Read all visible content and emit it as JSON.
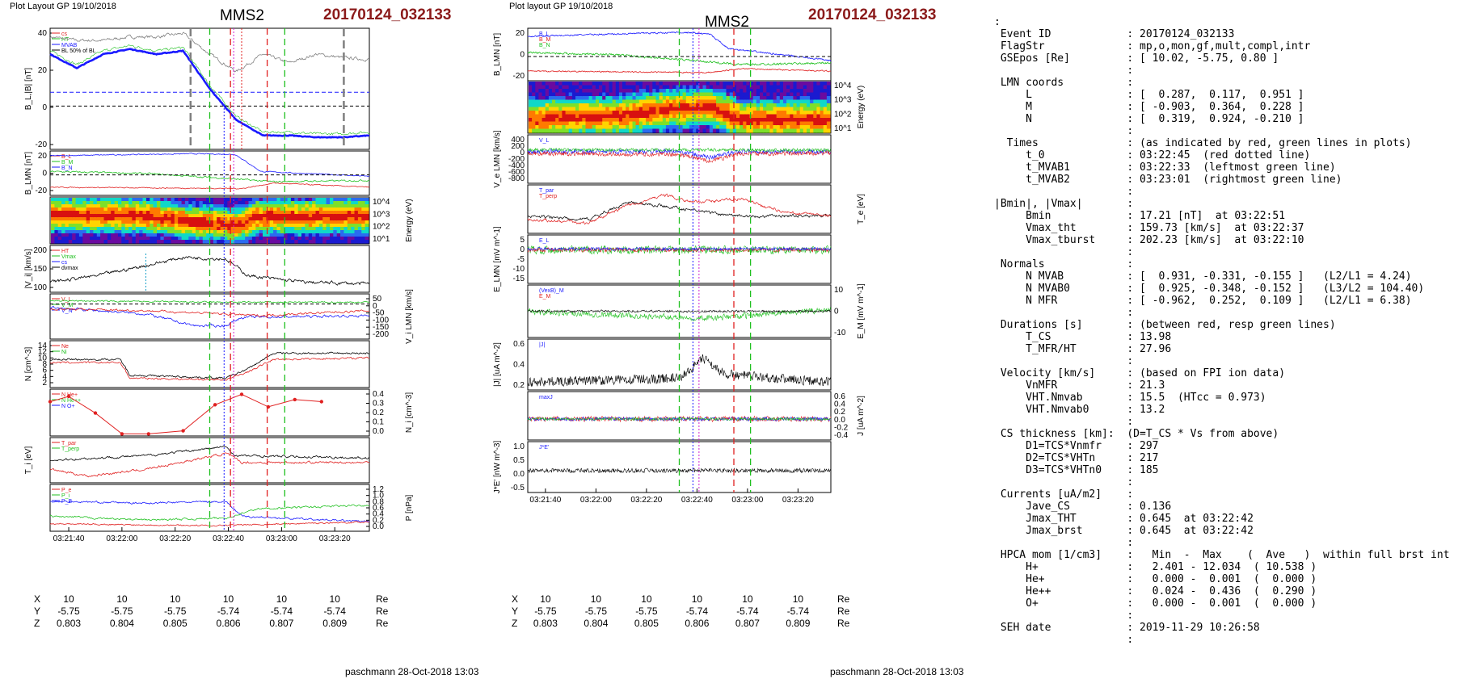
{
  "left": {
    "layout_label": "Plot Layout GP 19/10/2018",
    "spacecraft": "MMS2",
    "event": "20170124_032133",
    "footer": "paschmann 28-Oct-2018 13:03",
    "time_ticks": [
      "03:21:40",
      "03:22:00",
      "03:22:20",
      "03:22:40",
      "03:23:00",
      "03:23:20"
    ],
    "position": {
      "rows": [
        {
          "label": "X",
          "values": [
            "10",
            "10",
            "10",
            "10",
            "10",
            "10"
          ],
          "unit": "Re"
        },
        {
          "label": "Y",
          "values": [
            "-5.75",
            "-5.75",
            "-5.75",
            "-5.74",
            "-5.74",
            "-5.74"
          ],
          "unit": "Re"
        },
        {
          "label": "Z",
          "values": [
            "0.803",
            "0.804",
            "0.805",
            "0.806",
            "0.807",
            "0.809"
          ],
          "unit": "Re"
        }
      ]
    },
    "panels": [
      {
        "ylabel": "B_L,|B| [nT]",
        "ticks": [
          "40",
          "20",
          "0",
          "-20"
        ],
        "legend": [
          "cs",
          "HT",
          "MVAB",
          "BL 50% of BL"
        ]
      },
      {
        "ylabel": "B_LMN [nT]",
        "ticks": [
          "20",
          "0",
          "-20"
        ],
        "legend": [
          "B_L",
          "B_M",
          "B_N"
        ]
      },
      {
        "ylabel": "Energy (eV)",
        "ticks": [
          "10^4",
          "10^3",
          "10^2",
          "10^1"
        ],
        "legend": []
      },
      {
        "ylabel": "|V_i| [km/s]",
        "ticks": [
          "200",
          "150",
          "100"
        ],
        "legend": [
          "HT",
          "Vmax",
          "cs",
          "dvmax"
        ]
      },
      {
        "ylabel": "V_i LMN [km/s]",
        "ticks": [
          "50",
          "0",
          "-50",
          "-100",
          "-150",
          "-200"
        ],
        "legend": [
          "V_L",
          "V_M",
          "V_N"
        ]
      },
      {
        "ylabel": "N [cm^-3]",
        "ticks": [
          "14",
          "12",
          "10",
          "8",
          "6",
          "4",
          "2"
        ],
        "legend": [
          "Ne",
          "Ni"
        ]
      },
      {
        "ylabel": "N_i [cm^-3]",
        "ticks": [
          "0.4",
          "0.3",
          "0.2",
          "0.1",
          "0.0"
        ],
        "legend": [
          "N He+",
          "N He++",
          "N O+"
        ]
      },
      {
        "ylabel": "T_i [eV]",
        "ticks": [],
        "legend": [
          "T_par",
          "T_perp"
        ]
      },
      {
        "ylabel": "P [nPa]",
        "ticks": [
          "1.2",
          "1.0",
          "0.8",
          "0.6",
          "0.4",
          "0.2",
          "0.0"
        ],
        "legend": [
          "P_e",
          "P_i",
          "P_B"
        ]
      }
    ]
  },
  "right": {
    "layout_label": "Plot layout GP 19/10/2018",
    "spacecraft": "MMS2",
    "event": "20170124_032133",
    "footer": "paschmann 28-Oct-2018 13:03",
    "time_ticks": [
      "03:21:40",
      "03:22:00",
      "03:22:20",
      "03:22:40",
      "03:23:00",
      "03:23:20"
    ],
    "position": {
      "rows": [
        {
          "label": "X",
          "values": [
            "10",
            "10",
            "10",
            "10",
            "10",
            "10"
          ],
          "unit": "Re"
        },
        {
          "label": "Y",
          "values": [
            "-5.75",
            "-5.75",
            "-5.75",
            "-5.74",
            "-5.74",
            "-5.74"
          ],
          "unit": "Re"
        },
        {
          "label": "Z",
          "values": [
            "0.803",
            "0.804",
            "0.805",
            "0.806",
            "0.807",
            "0.809"
          ],
          "unit": "Re"
        }
      ]
    },
    "panels": [
      {
        "ylabel": "B_LMN [nT]",
        "ticks": [
          "20",
          "0",
          "-20"
        ],
        "legend": [
          "B_L",
          "B_M",
          "B_N"
        ]
      },
      {
        "ylabel": "Energy (eV)",
        "ticks": [
          "10^4",
          "10^3",
          "10^2",
          "10^1"
        ],
        "legend": []
      },
      {
        "ylabel": "V_e LMN [km/s]",
        "ticks": [
          "400",
          "200",
          "0",
          "-200",
          "-400",
          "-600",
          "-800"
        ],
        "legend": [
          "V_L"
        ]
      },
      {
        "ylabel": "T_e [eV]",
        "ticks": [],
        "legend": [
          "T_par",
          "T_perp"
        ]
      },
      {
        "ylabel": "E_LMN [mV m^-1]",
        "ticks": [
          "5",
          "0",
          "-5",
          "-10",
          "-15"
        ],
        "legend": [
          "E_L"
        ]
      },
      {
        "ylabel": "E_M [mV m^-1]",
        "ticks": [
          "10",
          "0",
          "-10"
        ],
        "legend": [
          "(VexB)_M",
          "E_M"
        ]
      },
      {
        "ylabel": "|J| [uA m^-2]",
        "ticks": [
          "0.6",
          "0.4",
          "0.2"
        ],
        "legend": [
          "|J|"
        ]
      },
      {
        "ylabel": "J [uA m^-2]",
        "ticks": [
          "0.6",
          "0.4",
          "0.2",
          "0.0",
          "-0.2",
          "-0.4"
        ],
        "legend": [
          "maxJ"
        ]
      },
      {
        "ylabel": "J*E' [nW m^-3]",
        "ticks": [
          "1.0",
          "0.5",
          "0.0",
          "-0.5"
        ],
        "legend": [
          "J*E'"
        ]
      }
    ]
  },
  "info_lines": [
    ":",
    " Event ID            : 20170124_032133",
    " FlagStr             : mp,o,mon,gf,mult,compl,intr",
    " GSEpos [Re]         : [ 10.02, -5.75, 0.80 ]",
    "                     :",
    " LMN coords          :",
    "     L               : [  0.287,  0.117,  0.951 ]",
    "     M               : [ -0.903,  0.364,  0.228 ]",
    "     N               : [  0.319,  0.924, -0.210 ]",
    "                     :",
    "  Times              : (as indicated by red, green lines in plots)",
    "     t_0             : 03:22:45  (red dotted line)",
    "     t_MVAB1         : 03:22:33  (leftmost green line)",
    "     t_MVAB2         : 03:23:01  (rightmost green line)",
    "                     :",
    "|Bmin|, |Vmax|       :",
    "     Bmin            : 17.21 [nT]  at 03:22:51",
    "     Vmax_tht        : 159.73 [km/s]  at 03:22:37",
    "     Vmax_tburst     : 202.23 [km/s]  at 03:22:10",
    "                     :",
    " Normals             :",
    "     N MVAB          : [  0.931, -0.331, -0.155 ]   (L2/L1 = 4.24)",
    "     N MVAB0         : [  0.925, -0.348, -0.152 ]   (L3/L2 = 104.40)",
    "     N MFR           : [ -0.962,  0.252,  0.109 ]   (L2/L1 = 6.38)",
    "                     :",
    " Durations [s]       : (between red, resp green lines)",
    "     T_CS            : 13.98",
    "     T_MFR/HT        : 27.96",
    "                     :",
    " Velocity [km/s]     : (based on FPI ion data)",
    "     VnMFR           : 21.3",
    "     VHT.Nmvab       : 15.5  (HTcc = 0.973)",
    "     VHT.Nmvab0      : 13.2",
    "                     :",
    " CS thickness [km]:  (D=T_CS * Vs from above)",
    "     D1=TCS*Vnmfr    : 297",
    "     D2=TCS*VHTn     : 217",
    "     D3=TCS*VHTn0    : 185",
    "                     :",
    " Currents [uA/m2]    :",
    "     Jave_CS         : 0.136",
    "     Jmax_THT        : 0.645  at 03:22:42",
    "     Jmax_brst       : 0.645  at 03:22:42",
    "                     :",
    " HPCA mom [1/cm3]    :   Min  -  Max    (  Ave   )  within full brst int",
    "     H+              :   2.401 - 12.034  ( 10.538 )",
    "     He+             :   0.000 -  0.001  (  0.000 )",
    "     He++            :   0.024 -  0.436  (  0.290 )",
    "     O+              :   0.000 -  0.001  (  0.000 )",
    "                     :",
    " SEH date            : 2019-11-29 10:26:58",
    "                     :"
  ],
  "colors": {
    "red": "#e02020",
    "green": "#20c020",
    "blue": "#1a1aff",
    "black": "#000000",
    "gray": "#808080",
    "title_red": "#8b1a1a"
  },
  "chart_data": [
    {
      "type": "line",
      "title": "MMS2 20170124_032133 (left stack)",
      "x_range": [
        "03:21:33",
        "03:23:33"
      ],
      "markers": {
        "t_0": "03:22:45",
        "t_MVAB1": "03:22:33",
        "t_MVAB2": "03:23:01"
      },
      "series": [
        {
          "name": "BL",
          "panel": 0,
          "x_sec": [
            0,
            10,
            20,
            30,
            40,
            50,
            60,
            70,
            80,
            90,
            100,
            110,
            120
          ],
          "values": [
            30,
            22,
            30,
            33,
            30,
            32,
            10,
            -8,
            -17,
            -17,
            -18,
            -18,
            -17
          ]
        },
        {
          "name": "|B|",
          "panel": 0,
          "x_sec": [
            0,
            10,
            20,
            30,
            40,
            50,
            60,
            70,
            80,
            90,
            100,
            110,
            120
          ],
          "values": [
            40,
            38,
            38,
            40,
            40,
            42,
            30,
            20,
            30,
            25,
            30,
            28,
            27
          ]
        },
        {
          "name": "N He++",
          "panel": 6,
          "x_sec": [
            0,
            7,
            17,
            27,
            37,
            50,
            62,
            72,
            82,
            92,
            102
          ],
          "values": [
            0.33,
            0.38,
            0.22,
            0.02,
            0.02,
            0.05,
            0.3,
            0.4,
            0.28,
            0.35,
            0.33
          ]
        }
      ]
    }
  ]
}
